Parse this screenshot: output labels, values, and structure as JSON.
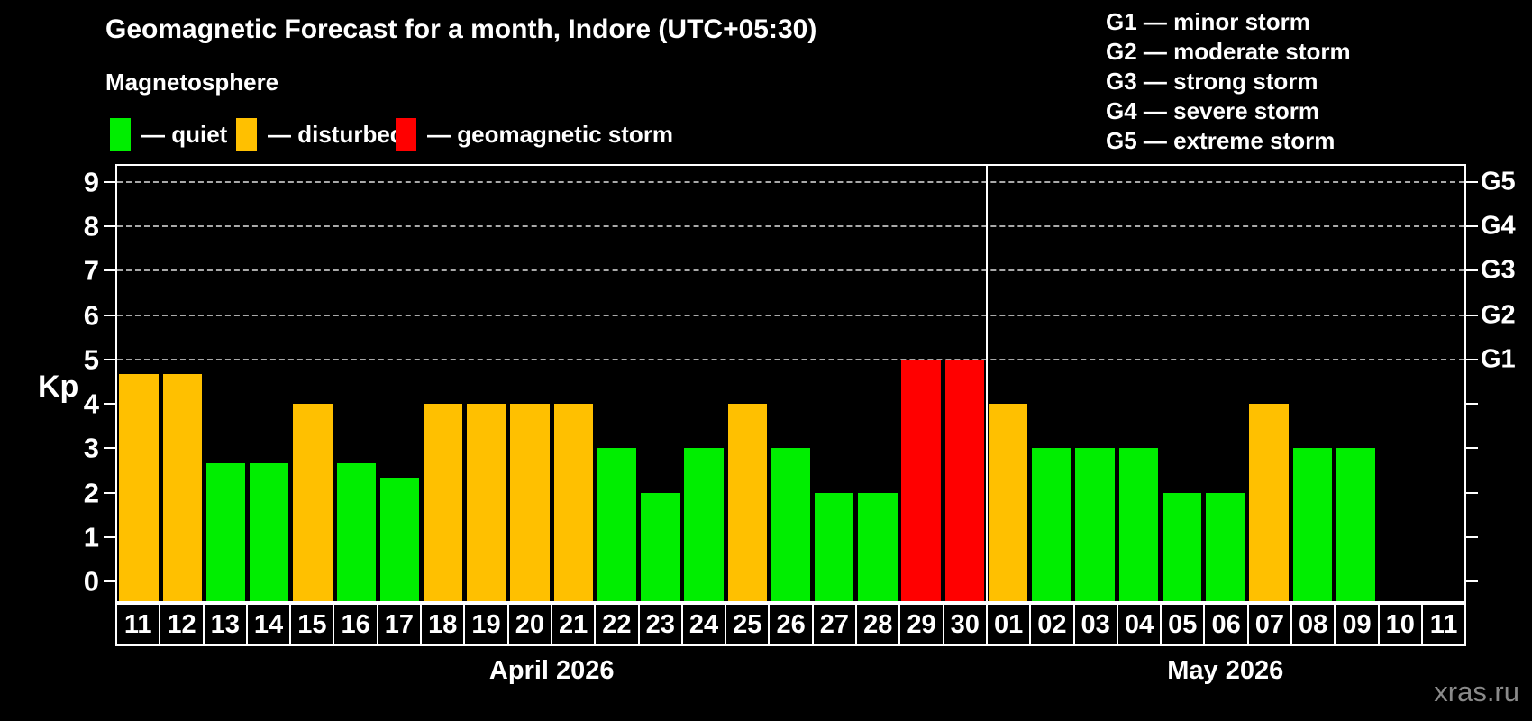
{
  "title": "Geomagnetic Forecast for a month, Indore (UTC+05:30)",
  "subtitle": "Magnetosphere",
  "legend": {
    "items": [
      {
        "name": "quiet",
        "label": "— quiet",
        "color": "#00EE00"
      },
      {
        "name": "disturbed",
        "label": "— disturbed",
        "color": "#FFC000"
      },
      {
        "name": "storm",
        "label": "— geomagnetic storm",
        "color": "#FF0000"
      }
    ]
  },
  "g_legend": [
    "G1 — minor storm",
    "G2 — moderate storm",
    "G3 — strong storm",
    "G4 — severe storm",
    "G5 — extreme storm"
  ],
  "watermark": "xras.ru",
  "chart_data": {
    "type": "bar",
    "ylabel": "Kp",
    "ylim": [
      -0.44,
      9.36
    ],
    "yticks": [
      0,
      1,
      2,
      3,
      4,
      5,
      6,
      7,
      8,
      9
    ],
    "dashed_gridlines": [
      5,
      6,
      7,
      8,
      9
    ],
    "right_axis_labels": [
      {
        "kp": 5,
        "label": "G1"
      },
      {
        "kp": 6,
        "label": "G2"
      },
      {
        "kp": 7,
        "label": "G3"
      },
      {
        "kp": 8,
        "label": "G4"
      },
      {
        "kp": 9,
        "label": "G5"
      }
    ],
    "colors": {
      "quiet": "#00EE00",
      "disturbed": "#FFC000",
      "storm": "#FF0000"
    },
    "months": [
      {
        "label": "April 2026",
        "days": 20
      },
      {
        "label": "May 2026",
        "days": 11
      }
    ],
    "month_separator_index": 20,
    "points": [
      {
        "day": "11",
        "kp": 4.67,
        "status": "disturbed"
      },
      {
        "day": "12",
        "kp": 4.67,
        "status": "disturbed"
      },
      {
        "day": "13",
        "kp": 2.67,
        "status": "quiet"
      },
      {
        "day": "14",
        "kp": 2.67,
        "status": "quiet"
      },
      {
        "day": "15",
        "kp": 4,
        "status": "disturbed"
      },
      {
        "day": "16",
        "kp": 2.67,
        "status": "quiet"
      },
      {
        "day": "17",
        "kp": 2.33,
        "status": "quiet"
      },
      {
        "day": "18",
        "kp": 4,
        "status": "disturbed"
      },
      {
        "day": "19",
        "kp": 4,
        "status": "disturbed"
      },
      {
        "day": "20",
        "kp": 4,
        "status": "disturbed"
      },
      {
        "day": "21",
        "kp": 4,
        "status": "disturbed"
      },
      {
        "day": "22",
        "kp": 3,
        "status": "quiet"
      },
      {
        "day": "23",
        "kp": 2,
        "status": "quiet"
      },
      {
        "day": "24",
        "kp": 3,
        "status": "quiet"
      },
      {
        "day": "25",
        "kp": 4,
        "status": "disturbed"
      },
      {
        "day": "26",
        "kp": 3,
        "status": "quiet"
      },
      {
        "day": "27",
        "kp": 2,
        "status": "quiet"
      },
      {
        "day": "28",
        "kp": 2,
        "status": "quiet"
      },
      {
        "day": "29",
        "kp": 5,
        "status": "storm"
      },
      {
        "day": "30",
        "kp": 5,
        "status": "storm"
      },
      {
        "day": "01",
        "kp": 4,
        "status": "disturbed"
      },
      {
        "day": "02",
        "kp": 3,
        "status": "quiet"
      },
      {
        "day": "03",
        "kp": 3,
        "status": "quiet"
      },
      {
        "day": "04",
        "kp": 3,
        "status": "quiet"
      },
      {
        "day": "05",
        "kp": 2,
        "status": "quiet"
      },
      {
        "day": "06",
        "kp": 2,
        "status": "quiet"
      },
      {
        "day": "07",
        "kp": 4,
        "status": "disturbed"
      },
      {
        "day": "08",
        "kp": 3,
        "status": "quiet"
      },
      {
        "day": "09",
        "kp": 3,
        "status": "quiet"
      },
      {
        "day": "10",
        "kp": null,
        "status": "none"
      },
      {
        "day": "11",
        "kp": null,
        "status": "none"
      }
    ]
  }
}
